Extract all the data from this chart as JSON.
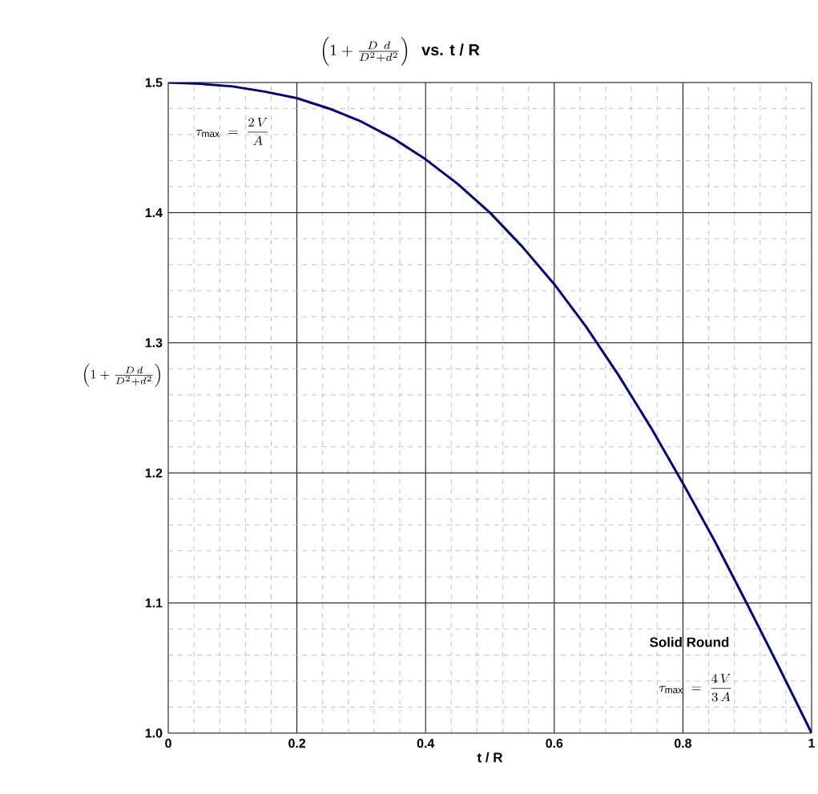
{
  "chart_data": {
    "type": "line",
    "title": "\\left( 1 + \\frac{D\\;\\,d}{D^{2} + d^{2}} \\right)\\;\\textbf{ vs. t / R}",
    "xlabel": "t / R",
    "ylabel": "\\left( 1 + \\frac{D\\,d}{D^{2} + d^{2}} \\right)",
    "x": [
      0,
      0.05,
      0.1,
      0.15,
      0.2,
      0.25,
      0.3,
      0.35,
      0.4,
      0.45,
      0.5,
      0.55,
      0.6,
      0.65,
      0.7,
      0.75,
      0.8,
      0.85,
      0.9,
      0.95,
      1.0
    ],
    "series": [
      {
        "color": "#000080",
        "values": [
          1.5,
          1.499,
          1.497,
          1.493,
          1.488,
          1.48,
          1.47,
          1.457,
          1.441,
          1.422,
          1.4,
          1.374,
          1.345,
          1.312,
          1.275,
          1.235,
          1.192,
          1.147,
          1.099,
          1.05,
          1.0
        ]
      }
    ],
    "xlim": [
      0,
      1
    ],
    "ylim": [
      1.0,
      1.5
    ],
    "xticks": [
      0,
      0.2,
      0.4,
      0.6,
      0.8,
      1
    ],
    "yticks": [
      {
        "value": 1.0,
        "label": "1.0"
      },
      {
        "value": 1.1,
        "label": "1.1"
      },
      {
        "value": 1.2,
        "label": "1.2"
      },
      {
        "value": 1.3,
        "label": "1.3"
      },
      {
        "value": 1.4,
        "label": "1.4"
      },
      {
        "value": 1.5,
        "label": "1.5"
      }
    ],
    "grid": true,
    "annotations": [
      "\\tau_{\\max}\\;=\\;\\frac{2\\,V}{A}",
      "Solid Round",
      "\\tau_{\\max}\\;=\\;\\frac{4\\,V}{3\\,A}"
    ]
  }
}
